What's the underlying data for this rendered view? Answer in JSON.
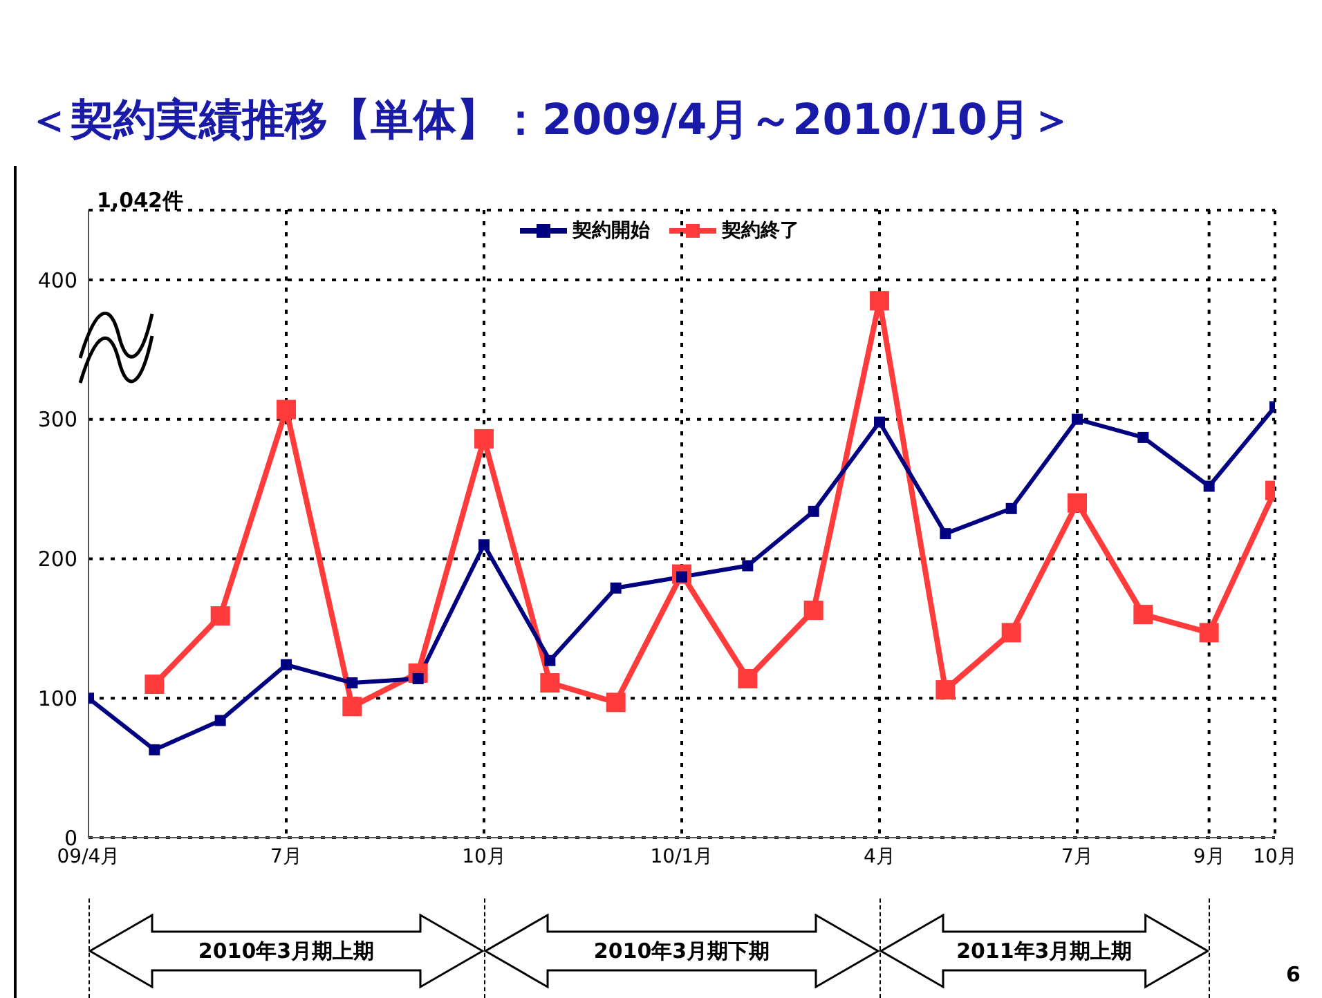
{
  "chart_data": {
    "type": "line",
    "title": "＜契約実績推移【単体】：2009/4月～2010/10月＞",
    "categories": [
      "09/4月",
      null,
      null,
      "7月",
      null,
      null,
      "10月",
      null,
      null,
      "10/1月",
      null,
      null,
      "4月",
      null,
      null,
      "7月",
      null,
      "9月",
      "10月"
    ],
    "series": [
      {
        "name": "契約開始",
        "color": "#000080",
        "values": [
          100,
          63,
          84,
          124,
          111,
          114,
          210,
          127,
          179,
          187,
          195,
          234,
          298,
          218,
          236,
          300,
          287,
          252,
          309
        ]
      },
      {
        "name": "契約終了",
        "color": "#ff3b3b",
        "values": [
          null,
          110,
          159,
          307,
          94,
          118,
          286,
          111,
          97,
          189,
          114,
          163,
          385,
          106,
          147,
          240,
          160,
          147,
          249
        ]
      }
    ],
    "ylim": [
      0,
      450
    ],
    "yticks": [
      0,
      100,
      200,
      300,
      400
    ],
    "grid": true,
    "legend": "top",
    "marker": "square",
    "line_style": "solid",
    "annotations": [
      "1,042件",
      "2010年3月期上期",
      "2010年3月期下期",
      "2011年3月期上期",
      "6"
    ]
  }
}
